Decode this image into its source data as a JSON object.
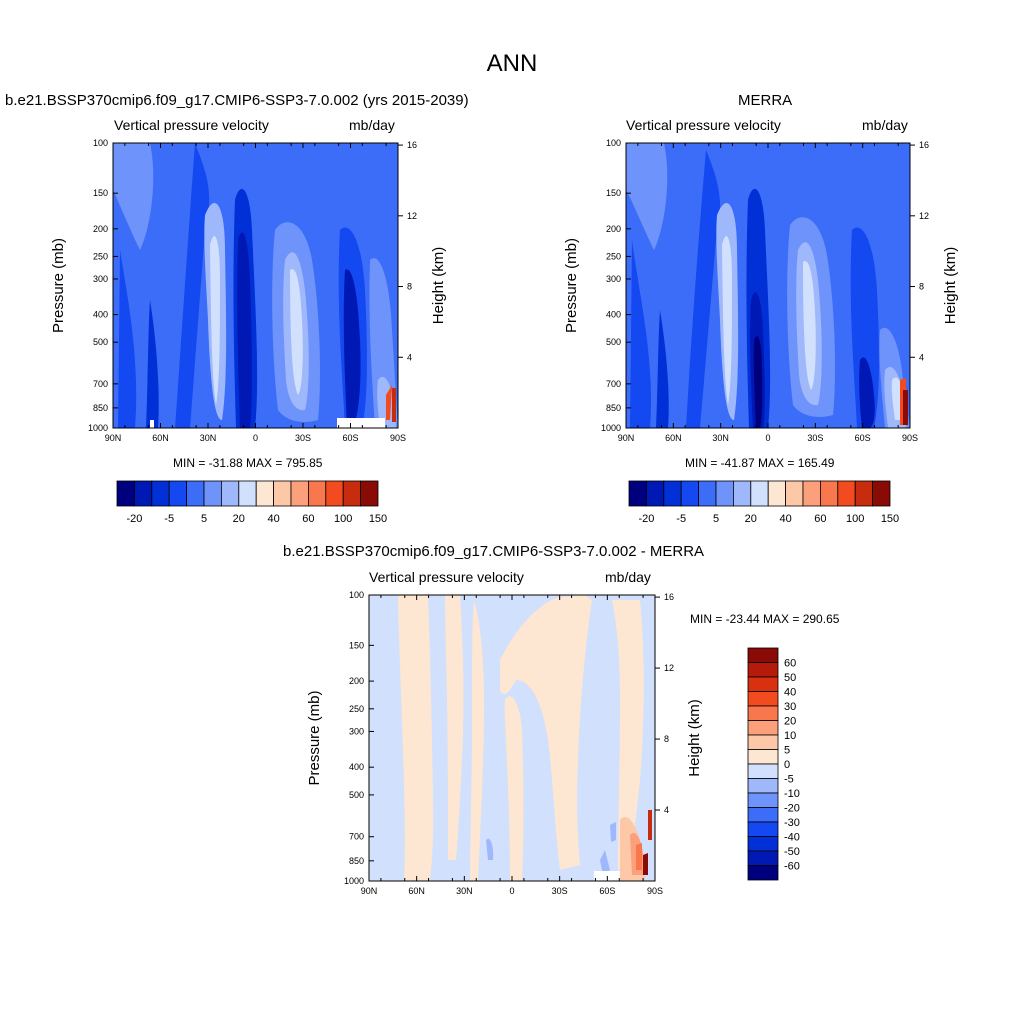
{
  "title": "ANN",
  "chart_data": [
    {
      "type": "heatmap",
      "title": "b.e21.BSSP370cmip6.f09_g17.CMIP6-SSP3-7.0.002 (yrs 2015-2039)",
      "variable": "Vertical pressure velocity",
      "units": "mb/day",
      "xlabel": "",
      "ylabel": "Pressure (mb)",
      "ylabel_right": "Height (km)",
      "x_ticks": [
        "90N",
        "60N",
        "30N",
        "0",
        "30S",
        "60S",
        "90S"
      ],
      "y_ticks": [
        100,
        150,
        200,
        250,
        300,
        400,
        500,
        700,
        850,
        1000
      ],
      "height_ticks": [
        16,
        12,
        8,
        4
      ],
      "ylim": [
        1000,
        100
      ],
      "stats": "MIN = -31.88  MAX = 795.85",
      "colorbar_labels": [
        "-20",
        "-5",
        "5",
        "20",
        "40",
        "60",
        "100",
        "150"
      ],
      "colorbar_colors": [
        "#00007f",
        "#0019b4",
        "#0030d6",
        "#1448f0",
        "#3b6df8",
        "#6e93fa",
        "#9fb8fb",
        "#d1e0fc",
        "#fde6d2",
        "#fcc8a8",
        "#fba07a",
        "#f9774c",
        "#f24b1f",
        "#c82c0e",
        "#8a0a05"
      ]
    },
    {
      "type": "heatmap",
      "title": "MERRA",
      "variable": "Vertical pressure velocity",
      "units": "mb/day",
      "xlabel": "",
      "ylabel": "Pressure (mb)",
      "ylabel_right": "Height (km)",
      "x_ticks": [
        "90N",
        "60N",
        "30N",
        "0",
        "30S",
        "60S",
        "90S"
      ],
      "y_ticks": [
        100,
        150,
        200,
        250,
        300,
        400,
        500,
        700,
        850,
        1000
      ],
      "height_ticks": [
        16,
        12,
        8,
        4
      ],
      "ylim": [
        1000,
        100
      ],
      "stats": "MIN = -41.87  MAX = 165.49",
      "colorbar_labels": [
        "-20",
        "-5",
        "5",
        "20",
        "40",
        "60",
        "100",
        "150"
      ],
      "colorbar_colors": [
        "#00007f",
        "#0019b4",
        "#0030d6",
        "#1448f0",
        "#3b6df8",
        "#6e93fa",
        "#9fb8fb",
        "#d1e0fc",
        "#fde6d2",
        "#fcc8a8",
        "#fba07a",
        "#f9774c",
        "#f24b1f",
        "#c82c0e",
        "#8a0a05"
      ]
    },
    {
      "type": "heatmap",
      "title": "b.e21.BSSP370cmip6.f09_g17.CMIP6-SSP3-7.0.002 - MERRA",
      "variable": "Vertical pressure velocity",
      "units": "mb/day",
      "xlabel": "",
      "ylabel": "Pressure (mb)",
      "ylabel_right": "Height (km)",
      "x_ticks": [
        "90N",
        "60N",
        "30N",
        "0",
        "30S",
        "60S",
        "90S"
      ],
      "y_ticks": [
        100,
        150,
        200,
        250,
        300,
        400,
        500,
        700,
        850,
        1000
      ],
      "height_ticks": [
        16,
        12,
        8,
        4
      ],
      "ylim": [
        1000,
        100
      ],
      "stats": "MIN = -23.44  MAX = 290.65",
      "colorbar_labels": [
        "60",
        "50",
        "40",
        "30",
        "20",
        "10",
        "5",
        "0",
        "-5",
        "-10",
        "-20",
        "-30",
        "-40",
        "-50",
        "-60"
      ],
      "colorbar_colors": [
        "#8a0a05",
        "#b51a0a",
        "#d93010",
        "#f24b1f",
        "#f9774c",
        "#fba07a",
        "#fcc8a8",
        "#fde6d2",
        "#d1e0fc",
        "#9fb8fb",
        "#6e93fa",
        "#3b6df8",
        "#1448f0",
        "#0030d6",
        "#0019b4",
        "#00007f"
      ]
    }
  ]
}
